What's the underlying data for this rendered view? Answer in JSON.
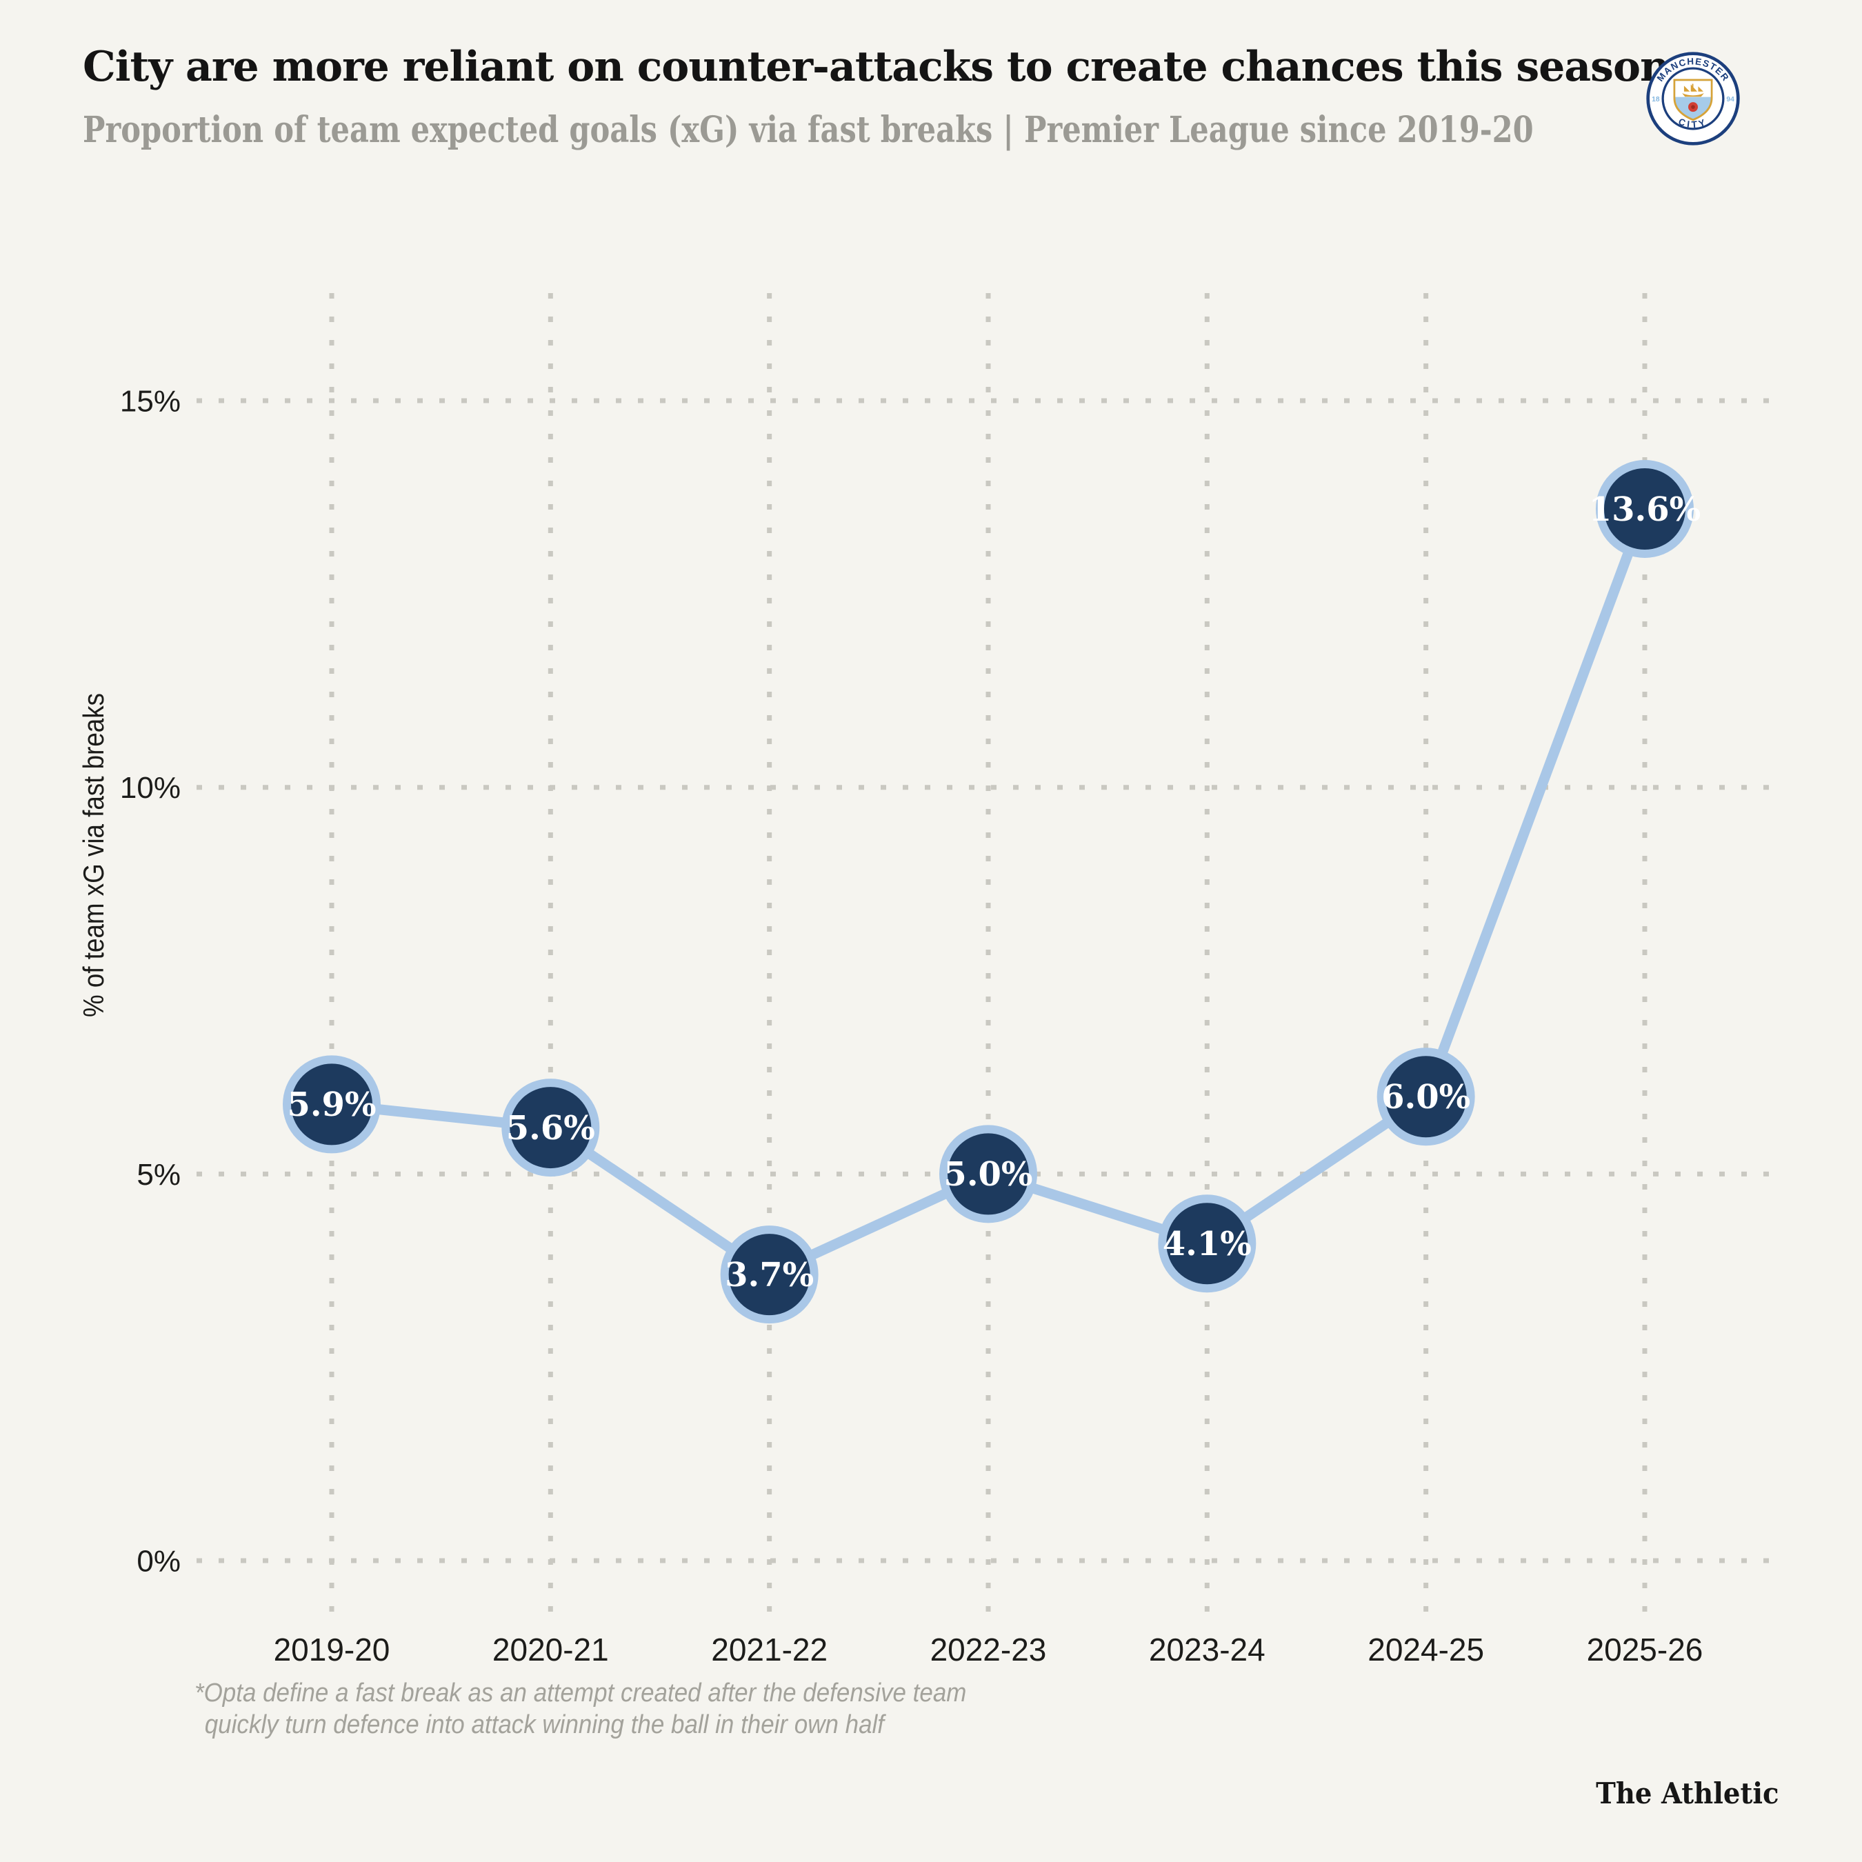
{
  "page": {
    "background": "#f5f4ef"
  },
  "header": {
    "title": "City are more reliant on counter-attacks to create chances this season",
    "subtitle": "Proportion of team expected goals (xG) via fast breaks | Premier League since 2019-20",
    "badge": {
      "top_text": "MANCHESTER",
      "bottom_text": "CITY",
      "left_text": "18",
      "right_text": "94"
    }
  },
  "chart_data": {
    "type": "line",
    "title": "City are more reliant on counter-attacks to create chances this season",
    "subtitle": "Proportion of team expected goals (xG) via fast breaks | Premier League since 2019-20",
    "categories": [
      "2019-20",
      "2020-21",
      "2021-22",
      "2022-23",
      "2023-24",
      "2024-25",
      "2025-26"
    ],
    "values": [
      5.9,
      5.6,
      3.7,
      5.0,
      4.1,
      6.0,
      13.6
    ],
    "point_labels": [
      "5.9%",
      "5.6%",
      "3.7%",
      "5.0%",
      "4.1%",
      "6.0%",
      "13.6%"
    ],
    "xlabel": "",
    "ylabel": "% of team xG via fast breaks",
    "yticks": [
      0,
      5,
      10,
      15
    ],
    "ytick_labels": [
      "0%",
      "5%",
      "10%",
      "15%"
    ],
    "ylim": [
      0,
      16.4
    ],
    "grid": "dotted horizontal and vertical gridlines",
    "legend": "none",
    "colors": {
      "point_fill": "#1d3a5e",
      "point_ring": "#a9c7e7",
      "line": "#a9c7e7",
      "grid": "#c9c8c1",
      "axis_text": "#1c1c1a",
      "point_label_text": "#ffffff"
    }
  },
  "footnote": {
    "line1": "*Opta define a fast break as an attempt created after the defensive team",
    "line2": "quickly turn defence into attack winning the ball in their own half"
  },
  "credit": "The Athletic"
}
